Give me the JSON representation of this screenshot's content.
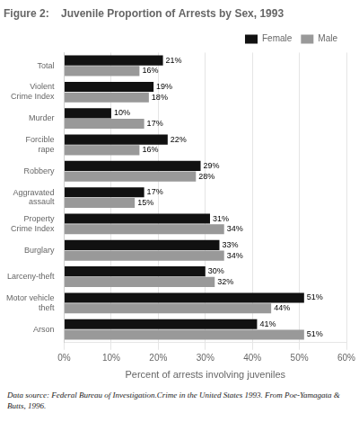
{
  "chart_data": {
    "type": "bar",
    "orientation": "horizontal",
    "title": "Figure 2:    Juvenile Proportion of Arrests by Sex, 1993",
    "xlabel": "Percent of arrests involving juveniles",
    "annotations": [
      "Data source: Federal Bureau of Investigation.Crime in the United States 1993. From Poe-Yamagata & Butts, 1996."
    ],
    "categories": [
      "Total",
      "Violent\nCrime Index",
      "Murder",
      "Forcible\nrape",
      "Robbery",
      "Aggravated\nassault",
      "Property\nCrime Index",
      "Burglary",
      "Larceny-theft",
      "Motor vehicle\ntheft",
      "Arson"
    ],
    "series": [
      {
        "name": "Female",
        "color": "#111111",
        "values": [
          21,
          19,
          10,
          22,
          29,
          17,
          31,
          33,
          30,
          51,
          41
        ],
        "value_labels": [
          "21%",
          "19%",
          "10%",
          "22%",
          "29%",
          "17%",
          "31%",
          "33%",
          "30%",
          "51%",
          "41%"
        ]
      },
      {
        "name": "Male",
        "color": "#999999",
        "values": [
          16,
          18,
          17,
          16,
          28,
          15,
          34,
          34,
          32,
          44,
          51
        ],
        "value_labels": [
          "16%",
          "18%",
          "17%",
          "16%",
          "28%",
          "15%",
          "34%",
          "34%",
          "32%",
          "44%",
          "51%"
        ]
      }
    ],
    "xlim": [
      0,
      60
    ],
    "xticks": [
      {
        "value": 0,
        "label": "0%"
      },
      {
        "value": 10,
        "label": "10%"
      },
      {
        "value": 20,
        "label": "20%"
      },
      {
        "value": 30,
        "label": "30%"
      },
      {
        "value": 40,
        "label": "40%"
      },
      {
        "value": 50,
        "label": "50%"
      },
      {
        "value": 60,
        "label": "60%"
      }
    ],
    "grid": true,
    "legend": "upper right",
    "data_labels": true
  }
}
